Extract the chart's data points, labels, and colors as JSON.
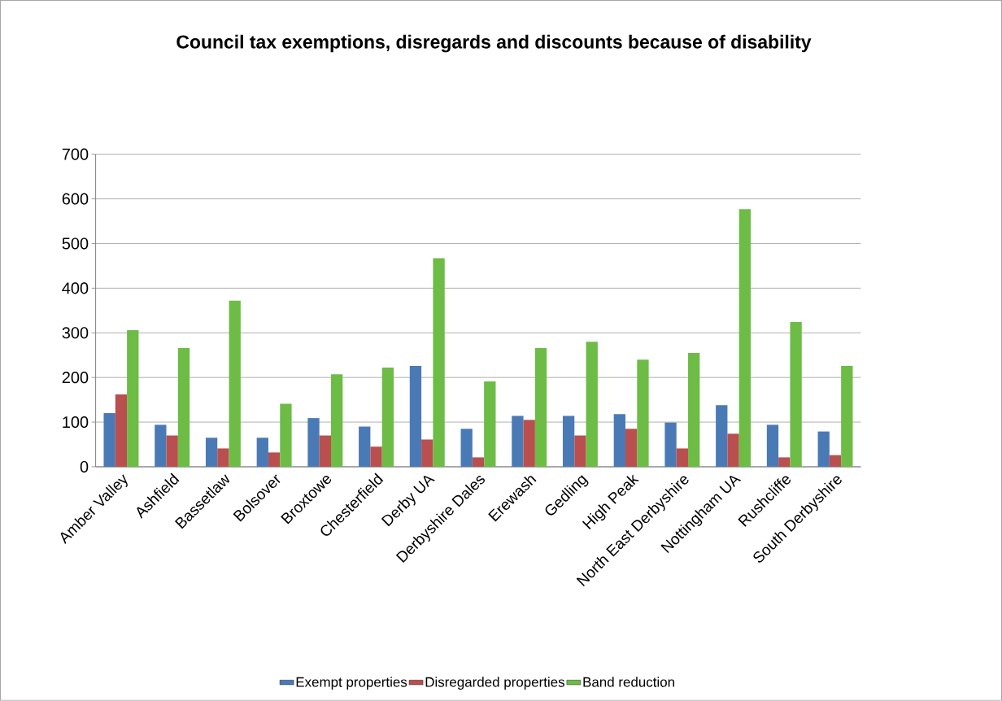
{
  "chart_data": {
    "type": "bar",
    "title": "Council tax exemptions, disregards and discounts because of disability",
    "categories": [
      "Amber Valley",
      "Ashfield",
      "Bassetlaw",
      "Bolsover",
      "Broxtowe",
      "Chesterfield",
      "Derby UA",
      "Derbyshire Dales",
      "Erewash",
      "Gedling",
      "High Peak",
      "North East Derbyshire",
      "Nottingham UA",
      "Rushcliffe",
      "South Derbyshire"
    ],
    "series": [
      {
        "name": "Exempt properties",
        "color": "#4a7ab5",
        "values": [
          120,
          94,
          65,
          65,
          109,
          90,
          226,
          85,
          114,
          114,
          118,
          99,
          138,
          94,
          79
        ]
      },
      {
        "name": "Disregarded properties",
        "color": "#b94f4e",
        "values": [
          162,
          70,
          41,
          32,
          70,
          45,
          61,
          21,
          105,
          70,
          85,
          41,
          74,
          21,
          26
        ]
      },
      {
        "name": "Band reduction",
        "color": "#6cbc45",
        "values": [
          306,
          266,
          372,
          141,
          207,
          222,
          467,
          191,
          266,
          280,
          240,
          255,
          577,
          324,
          226
        ]
      }
    ],
    "ylim": [
      0,
      700
    ],
    "yticks": [
      0,
      100,
      200,
      300,
      400,
      500,
      600,
      700
    ],
    "grid": "y",
    "legend": "bottom"
  }
}
